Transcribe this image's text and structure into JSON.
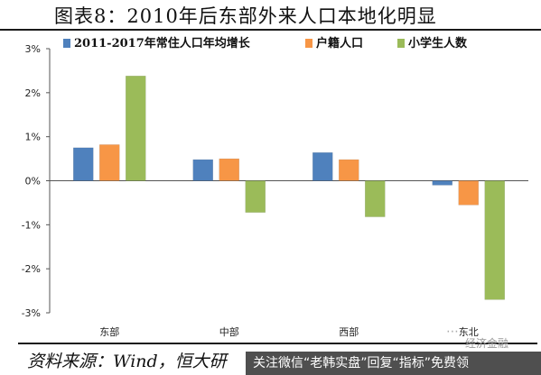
{
  "title": "图表8：2010年后东部外来人口本地化明显",
  "source": "资料来源：Wind，恒大研",
  "watermark": "经济金融",
  "ad_text": "关注微信“老韩实盘”回复“指标”免费领",
  "colors": {
    "series1": "#4f81bd",
    "series2": "#f79646",
    "series3": "#9bbb59"
  },
  "chart_data": {
    "type": "bar",
    "categories": [
      "东部",
      "中部",
      "西部",
      "东北"
    ],
    "series": [
      {
        "name": "2011-2017年常住人口年均增长",
        "values": [
          0.75,
          0.48,
          0.64,
          -0.1
        ]
      },
      {
        "name": "户籍人口",
        "values": [
          0.82,
          0.5,
          0.48,
          -0.55
        ]
      },
      {
        "name": "小学生人数",
        "values": [
          2.38,
          -0.72,
          -0.82,
          -2.7
        ]
      }
    ],
    "ylim": [
      -3,
      3
    ],
    "yticks": [
      "-3%",
      "-2%",
      "-1%",
      "0%",
      "1%",
      "2%",
      "3%"
    ],
    "title": "",
    "xlabel": "",
    "ylabel": "",
    "legend_position": "top-right",
    "grid": false
  }
}
